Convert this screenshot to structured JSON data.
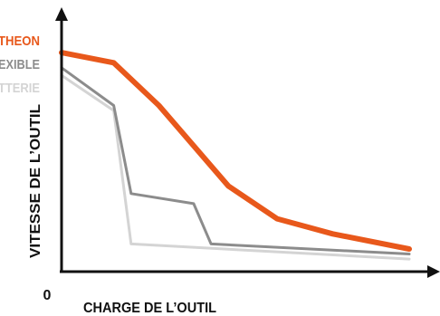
{
  "chart_data": {
    "type": "line",
    "xlabel": "CHARGE DE L’OUTIL",
    "ylabel": "VITESSE DE L’OUTIL",
    "origin_label": "0",
    "grid": false,
    "legend_position": "top-left",
    "series": [
      {
        "name": "THEON",
        "color": "#e8581b",
        "points": [
          [
            0,
            87
          ],
          [
            15,
            83
          ],
          [
            28,
            66
          ],
          [
            48,
            34
          ],
          [
            62,
            21
          ],
          [
            78,
            15
          ],
          [
            100,
            9
          ]
        ]
      },
      {
        "name": "EXIBLE",
        "color": "#8c8c8c",
        "points": [
          [
            0,
            81
          ],
          [
            15,
            66
          ],
          [
            20,
            31
          ],
          [
            38,
            27
          ],
          [
            43,
            11
          ],
          [
            100,
            7
          ]
        ]
      },
      {
        "name": "TTERIE",
        "color": "#d4d4d4",
        "points": [
          [
            0,
            78
          ],
          [
            15,
            64
          ],
          [
            20,
            11
          ],
          [
            100,
            5
          ]
        ]
      }
    ]
  }
}
